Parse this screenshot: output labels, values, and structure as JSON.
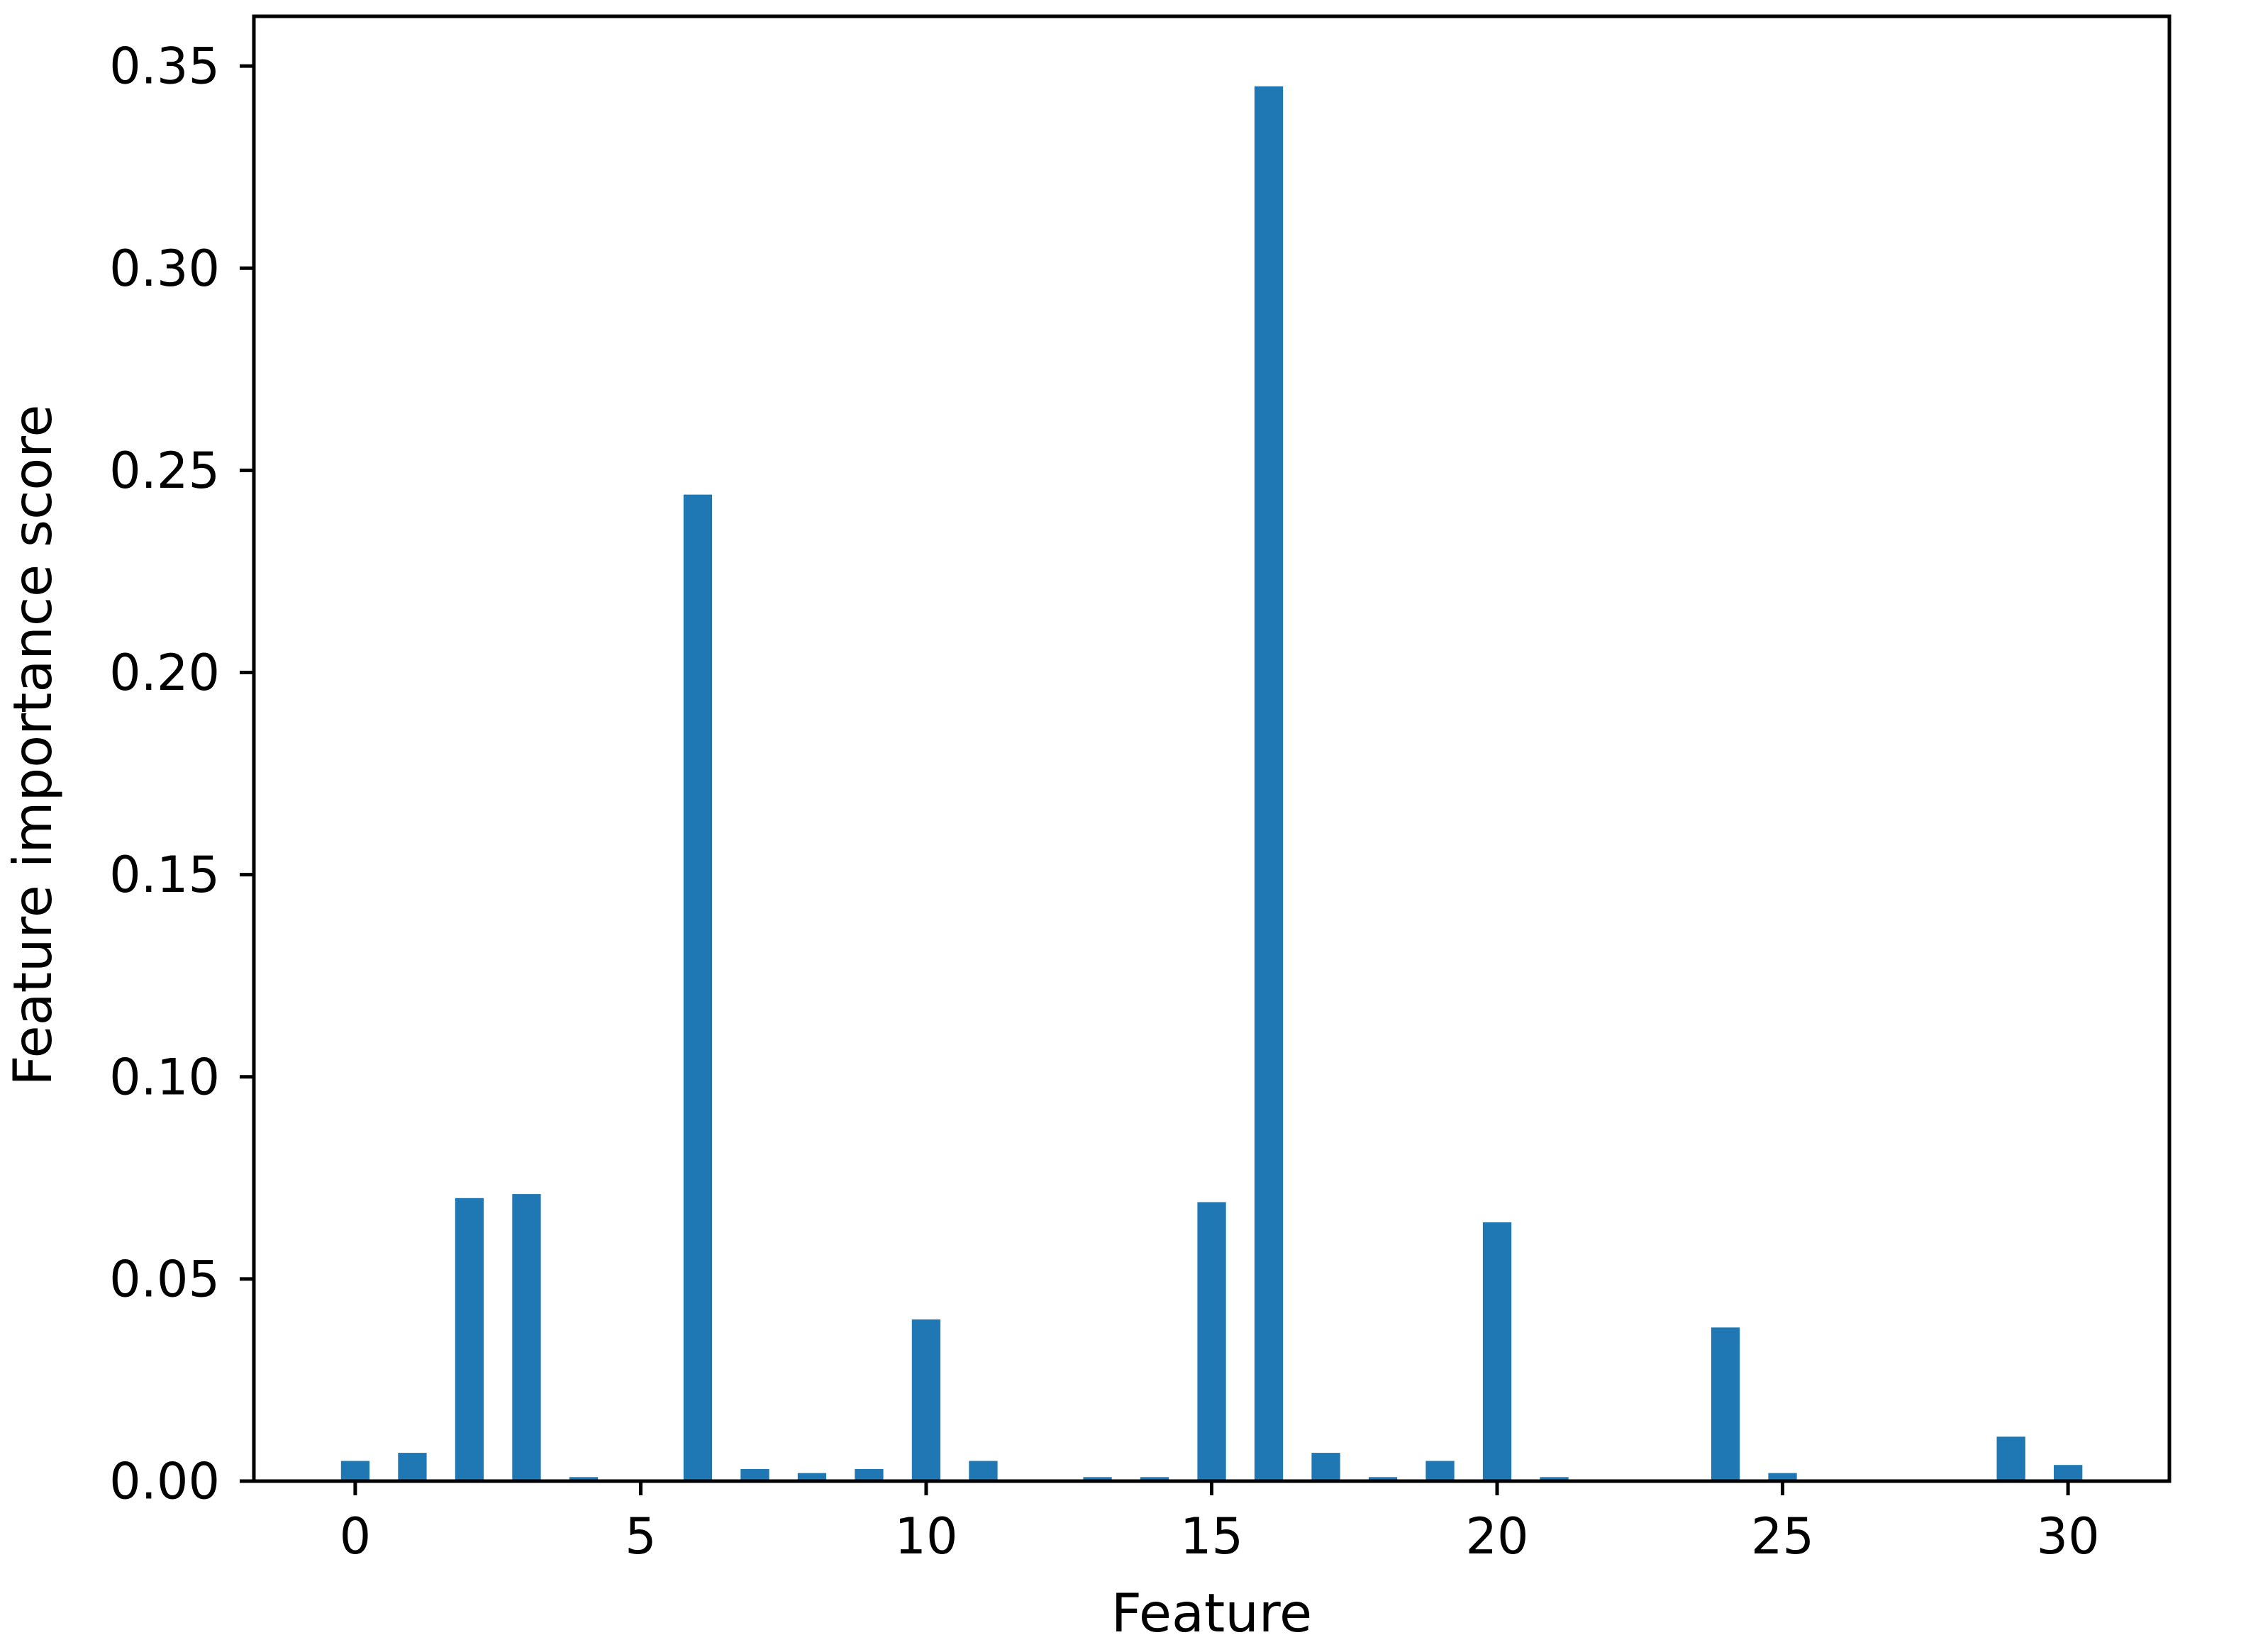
{
  "chart_data": {
    "type": "bar",
    "xlabel": "Feature",
    "ylabel": "Feature importance score",
    "x": [
      0,
      1,
      2,
      3,
      4,
      5,
      6,
      7,
      8,
      9,
      10,
      11,
      12,
      13,
      14,
      15,
      16,
      17,
      18,
      19,
      20,
      21,
      22,
      23,
      24,
      25,
      26,
      27,
      28,
      29,
      30
    ],
    "values": [
      0.005,
      0.007,
      0.07,
      0.071,
      0.001,
      0.0,
      0.244,
      0.003,
      0.002,
      0.003,
      0.04,
      0.005,
      0.0,
      0.001,
      0.001,
      0.069,
      0.345,
      0.007,
      0.001,
      0.005,
      0.064,
      0.001,
      0.0,
      0.0,
      0.038,
      0.002,
      0.0,
      0.0,
      0.0,
      0.011,
      0.004
    ],
    "bar_color": "#1f77b4",
    "bar_width": 0.5,
    "axis_color": "#000000",
    "xticks": [
      0,
      5,
      10,
      15,
      20,
      25,
      30
    ],
    "xtick_labels": [
      "0",
      "5",
      "10",
      "15",
      "20",
      "25",
      "30"
    ],
    "yticks": [
      0.0,
      0.05,
      0.1,
      0.15,
      0.2,
      0.25,
      0.3,
      0.35
    ],
    "ytick_labels": [
      "0.00",
      "0.05",
      "0.10",
      "0.15",
      "0.20",
      "0.25",
      "0.30",
      "0.35"
    ],
    "xlim": [
      -1.775,
      31.775
    ],
    "ylim": [
      0,
      0.3623
    ],
    "grid": false,
    "legend_position": "none"
  }
}
